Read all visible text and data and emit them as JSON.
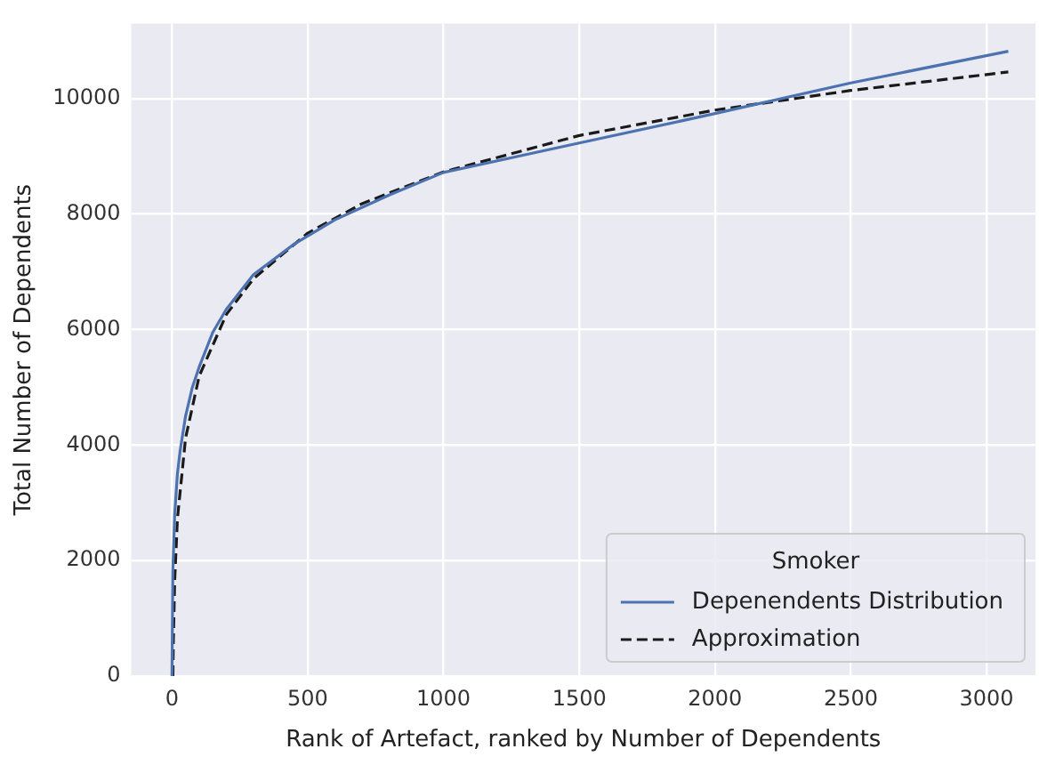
{
  "chart_data": {
    "type": "line",
    "xlabel": "Rank of Artefact, ranked by Number of Dependents",
    "ylabel": "Total Number of Dependents",
    "legend_title": "Smoker",
    "legend": "bottom right",
    "grid": true,
    "marker": "none",
    "xlim": [
      -150,
      3180
    ],
    "xticks": [
      0,
      500,
      1000,
      1500,
      2000,
      2500,
      3000
    ],
    "ylim": [
      0,
      11300
    ],
    "yticks": [
      0,
      2000,
      4000,
      6000,
      8000,
      10000
    ],
    "series": [
      {
        "name": "Depenendents Distribution",
        "color": "#4c72b0",
        "line_style": "solid",
        "x": [
          0,
          3,
          10,
          20,
          30,
          50,
          75,
          100,
          150,
          200,
          300,
          450,
          600,
          800,
          1000,
          1500,
          2000,
          2500,
          3080
        ],
        "values": [
          0,
          1800,
          2800,
          3500,
          3900,
          4500,
          5000,
          5350,
          5950,
          6350,
          6950,
          7480,
          7900,
          8330,
          8720,
          9230,
          9740,
          10270,
          10820
        ]
      },
      {
        "name": "Approximation",
        "color": "#1a1a1a",
        "line_style": "dashed",
        "x": [
          3.5,
          4,
          5,
          10,
          20,
          50,
          100,
          200,
          300,
          500,
          700,
          1000,
          1500,
          2000,
          2500,
          3080
        ],
        "values": [
          0,
          240,
          580,
          1650,
          2720,
          4120,
          5190,
          6260,
          6880,
          7670,
          8180,
          8730,
          9360,
          9800,
          10140,
          10460
        ]
      }
    ]
  }
}
